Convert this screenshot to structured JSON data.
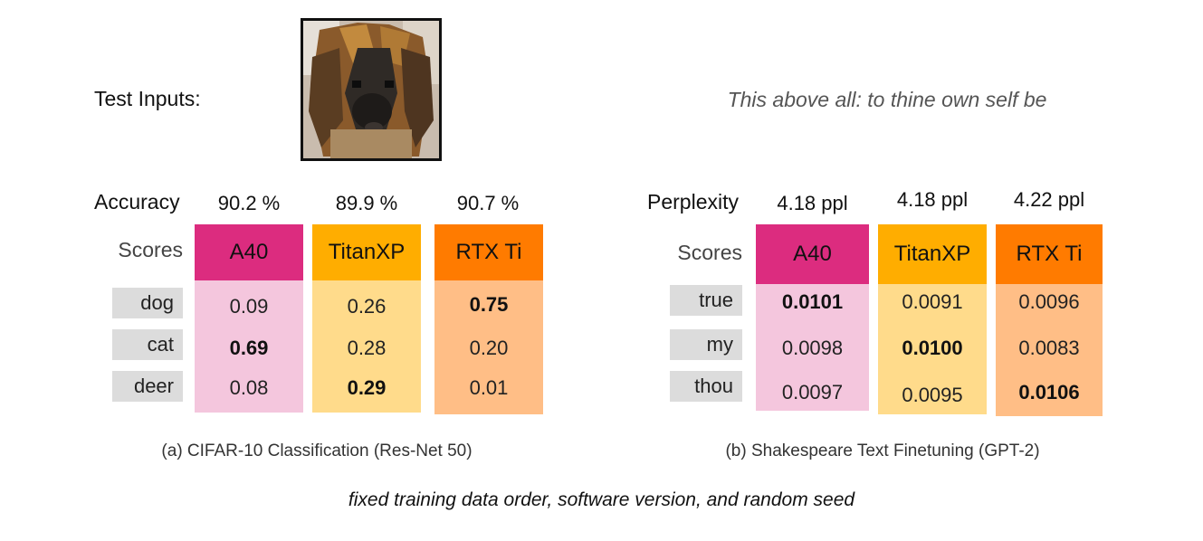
{
  "test_inputs_label": "Test Inputs:",
  "quote_text": "This above all: to thine own self be",
  "footer_text": "fixed training data order, software version, and random seed",
  "colors": {
    "a40": "#dc2c7f",
    "a40_light": "#f4c6dd",
    "titan": "#ffad00",
    "titan_light": "#ffdb8b",
    "rtx": "#ff7b00",
    "rtx_light": "#ffbe86"
  },
  "panel_a": {
    "metric_label": "Accuracy",
    "scores_label": "Scores",
    "caption": "(a) CIFAR-10 Classification (Res-Net 50)",
    "gpus": [
      {
        "name": "A40",
        "metric": "90.2 %"
      },
      {
        "name": "TitanXP",
        "metric": "89.9  %"
      },
      {
        "name": "RTX Ti",
        "metric": "90.7 %"
      }
    ],
    "rows": [
      {
        "label": "dog",
        "values": [
          "0.09",
          "0.26",
          "0.75"
        ],
        "bold_index": 2
      },
      {
        "label": "cat",
        "values": [
          "0.69",
          "0.28",
          "0.20"
        ],
        "bold_index": 0
      },
      {
        "label": "deer",
        "values": [
          "0.08",
          "0.29",
          "0.01"
        ],
        "bold_index": 1
      }
    ]
  },
  "panel_b": {
    "metric_label": "Perplexity",
    "scores_label": "Scores",
    "caption": "(b) Shakespeare Text Finetuning (GPT-2)",
    "gpus": [
      {
        "name": "A40",
        "metric": "4.18 ppl"
      },
      {
        "name": "TitanXP",
        "metric": "4.18 ppl"
      },
      {
        "name": "RTX Ti",
        "metric": "4.22 ppl"
      }
    ],
    "rows": [
      {
        "label": "true",
        "values": [
          "0.0101",
          "0.0091",
          "0.0096"
        ],
        "bold_index": 0
      },
      {
        "label": "my",
        "values": [
          "0.0098",
          "0.0100",
          "0.0083"
        ],
        "bold_index": 1
      },
      {
        "label": "thou",
        "values": [
          "0.0097",
          "0.0095",
          "0.0106"
        ],
        "bold_index": 2
      }
    ]
  }
}
